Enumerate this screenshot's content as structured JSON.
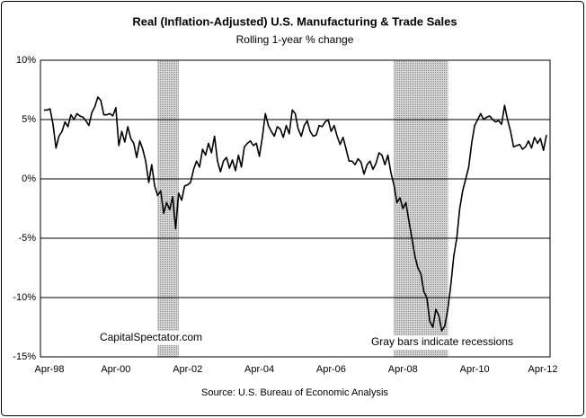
{
  "chart_data": {
    "type": "line",
    "title": "Real (Inflation-Adjusted) U.S. Manufacturing & Trade Sales",
    "subtitle": "Rolling 1-year % change",
    "source": "Source: U.S. Bureau of Economic Analysis",
    "annotations": [
      "CapitalSpectator.com",
      "Gray bars indicate recessions"
    ],
    "categories": [
      "Apr-98",
      null,
      null,
      null,
      null,
      null,
      null,
      null,
      null,
      null,
      null,
      null,
      null,
      null,
      null,
      null,
      null,
      null,
      null,
      null,
      null,
      null,
      null,
      null,
      "Apr-00",
      null,
      null,
      null,
      null,
      null,
      null,
      null,
      null,
      null,
      null,
      null,
      null,
      null,
      null,
      null,
      null,
      null,
      null,
      null,
      null,
      null,
      null,
      null,
      "Apr-02",
      null,
      null,
      null,
      null,
      null,
      null,
      null,
      null,
      null,
      null,
      null,
      null,
      null,
      null,
      null,
      null,
      null,
      null,
      null,
      null,
      null,
      null,
      null,
      "Apr-04",
      null,
      null,
      null,
      null,
      null,
      null,
      null,
      null,
      null,
      null,
      null,
      null,
      null,
      null,
      null,
      null,
      null,
      null,
      null,
      null,
      null,
      null,
      null,
      "Apr-06",
      null,
      null,
      null,
      null,
      null,
      null,
      null,
      null,
      null,
      null,
      null,
      null,
      null,
      null,
      null,
      null,
      null,
      null,
      null,
      null,
      null,
      null,
      null,
      "Apr-08",
      null,
      null,
      null,
      null,
      null,
      null,
      null,
      null,
      null,
      null,
      null,
      null,
      null,
      null,
      null,
      null,
      null,
      null,
      null,
      null,
      null,
      null,
      null,
      "Apr-10",
      null,
      null,
      null,
      null,
      null,
      null,
      null,
      null,
      null,
      null,
      null,
      null,
      null,
      null,
      null,
      null,
      null,
      null,
      null,
      null,
      null,
      null,
      null,
      "Apr-12"
    ],
    "values": [
      5.8,
      5.8,
      5.9,
      4.6,
      2.6,
      3.6,
      4.0,
      4.8,
      4.4,
      5.4,
      5.0,
      5.5,
      5.3,
      5.2,
      4.9,
      4.5,
      5.6,
      6.1,
      6.9,
      6.6,
      5.4,
      5.4,
      5.5,
      5.3,
      6.0,
      2.8,
      4.0,
      3.1,
      4.4,
      3.4,
      3.0,
      1.8,
      3.2,
      2.5,
      1.5,
      -0.3,
      1.2,
      -0.6,
      -1.4,
      -1.0,
      -2.9,
      -2.0,
      -2.6,
      -1.5,
      -4.2,
      -1.2,
      -1.8,
      -0.6,
      -0.5,
      -0.3,
      0.8,
      1.5,
      1.0,
      2.5,
      2.0,
      3.0,
      2.2,
      3.6,
      1.5,
      0.6,
      1.5,
      1.8,
      0.9,
      1.6,
      0.7,
      2.0,
      1.0,
      2.7,
      3.0,
      3.2,
      2.8,
      3.0,
      1.9,
      3.5,
      5.5,
      4.5,
      4.0,
      3.6,
      4.4,
      4.2,
      3.5,
      4.5,
      3.8,
      5.8,
      5.5,
      4.2,
      3.6,
      4.5,
      4.9,
      4.0,
      3.6,
      3.7,
      4.5,
      4.4,
      4.8,
      5.0,
      4.0,
      4.5,
      3.6,
      2.9,
      3.5,
      2.5,
      1.5,
      1.5,
      1.2,
      1.7,
      1.4,
      0.4,
      1.2,
      1.5,
      0.8,
      1.3,
      2.2,
      2.0,
      1.2,
      2.0,
      0.5,
      -0.5,
      -2.0,
      -1.6,
      -2.5,
      -2.0,
      -3.5,
      -5.0,
      -6.5,
      -7.5,
      -8.0,
      -9.5,
      -10.0,
      -12.0,
      -12.5,
      -11.0,
      -11.5,
      -12.8,
      -12.4,
      -11.0,
      -9.0,
      -6.5,
      -5.0,
      -2.5,
      -1.0,
      0.0,
      1.0,
      3.0,
      4.5,
      5.0,
      5.5,
      5.0,
      5.2,
      5.3,
      5.0,
      4.8,
      4.9,
      4.6,
      6.2,
      5.0,
      4.0,
      2.7,
      2.8,
      2.9,
      2.5,
      2.7,
      3.2,
      2.6,
      3.5,
      3.0,
      3.4,
      2.4,
      3.7
    ],
    "color": "#000000",
    "recessions": [
      [
        38,
        45
      ],
      [
        117,
        135
      ]
    ],
    "recession_color": "#b8b8b8",
    "ylim": [
      -15,
      10
    ],
    "yticks": [
      {
        "value": -15,
        "label": "-15%"
      },
      {
        "value": -10,
        "label": "-10%"
      },
      {
        "value": -5,
        "label": "-5%"
      },
      {
        "value": 0,
        "label": "0%"
      },
      {
        "value": 5,
        "label": "5%"
      },
      {
        "value": 10,
        "label": "10%"
      }
    ],
    "grid": true
  }
}
